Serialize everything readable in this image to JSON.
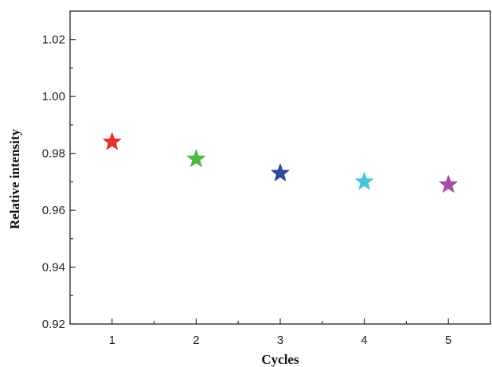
{
  "chart_data": {
    "type": "scatter",
    "xlabel": "Cycles",
    "ylabel": "Relative intensity",
    "xlim": [
      0.5,
      5.5
    ],
    "ylim": [
      0.92,
      1.03
    ],
    "x_ticks": [
      "1",
      "2",
      "3",
      "4",
      "5"
    ],
    "y_ticks": [
      "0.92",
      "0.94",
      "0.96",
      "0.98",
      "1.00",
      "1.02"
    ],
    "marker": "star",
    "grid": false,
    "points": [
      {
        "x": 1,
        "y": 0.984,
        "color": "#e8312f"
      },
      {
        "x": 2,
        "y": 0.978,
        "color": "#4db848"
      },
      {
        "x": 3,
        "y": 0.973,
        "color": "#2e4a9e"
      },
      {
        "x": 4,
        "y": 0.97,
        "color": "#4cc3dc"
      },
      {
        "x": 5,
        "y": 0.969,
        "color": "#a64ea6"
      }
    ]
  }
}
